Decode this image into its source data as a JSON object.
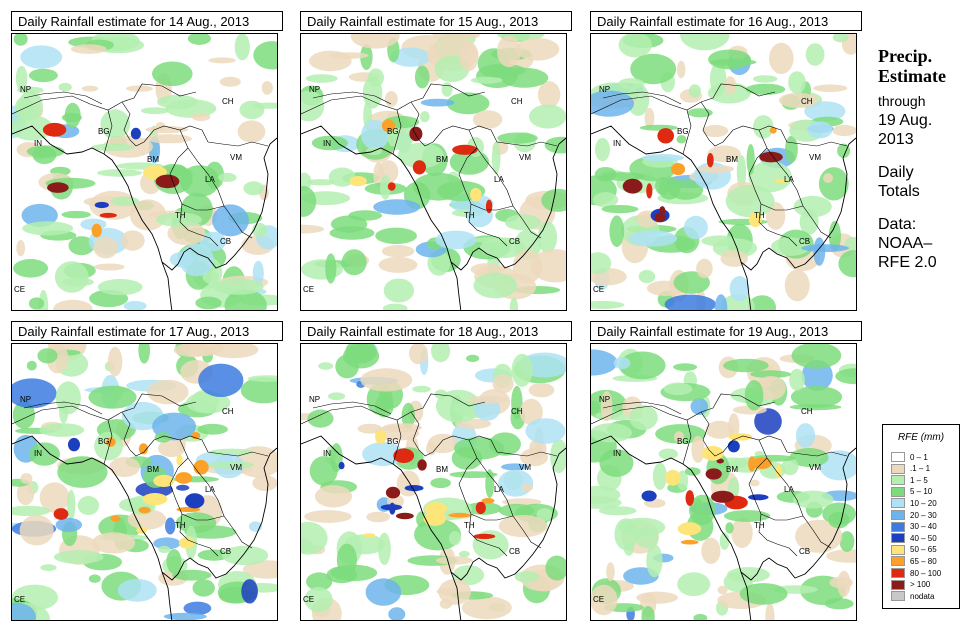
{
  "panels": [
    {
      "title": "Daily Rainfall estimate for  14 Aug., 2013",
      "intensity": 2
    },
    {
      "title": "Daily Rainfall estimate for  15 Aug., 2013",
      "intensity": 2
    },
    {
      "title": "Daily Rainfall estimate for  16 Aug., 2013",
      "intensity": 3
    },
    {
      "title": "Daily Rainfall estimate for  17 Aug., 2013",
      "intensity": 4
    },
    {
      "title": "Daily Rainfall estimate for  18 Aug., 2013",
      "intensity": 4
    },
    {
      "title": "Daily Rainfall estimate for  19 Aug., 2013",
      "intensity": 4
    }
  ],
  "country_labels": [
    "NP",
    "IN",
    "BG",
    "CH",
    "BM",
    "VM",
    "LA",
    "TH",
    "CB",
    "CE"
  ],
  "side": {
    "title_line1": "Precip.",
    "title_line2": "Estimate",
    "through": "through",
    "date_line1": "19 Aug.",
    "date_line2": "2013",
    "daily_line1": "Daily",
    "daily_line2": "Totals",
    "data_line1": "Data:",
    "data_line2": "NOAA–",
    "data_line3": "RFE 2.0"
  },
  "legend": {
    "title": "RFE (mm)",
    "items": [
      {
        "label": "0 – 1",
        "color": "#ffffff"
      },
      {
        "label": ".1 – 1",
        "color": "#ecd9bd"
      },
      {
        "label": "1 – 5",
        "color": "#b4eeb0"
      },
      {
        "label": "5 – 10",
        "color": "#7cdc7c"
      },
      {
        "label": "10 – 20",
        "color": "#aee2f5"
      },
      {
        "label": "20 – 30",
        "color": "#6db4ec"
      },
      {
        "label": "30 – 40",
        "color": "#3c7be0"
      },
      {
        "label": "40 – 50",
        "color": "#1c3fc0"
      },
      {
        "label": "50 – 65",
        "color": "#fde57a"
      },
      {
        "label": "65 – 80",
        "color": "#fba12a"
      },
      {
        "label": "80 – 100",
        "color": "#dd2a10"
      },
      {
        "label": "> 100",
        "color": "#8b1a1a"
      },
      {
        "label": "nodata",
        "color": "#c8c8c8"
      }
    ]
  }
}
